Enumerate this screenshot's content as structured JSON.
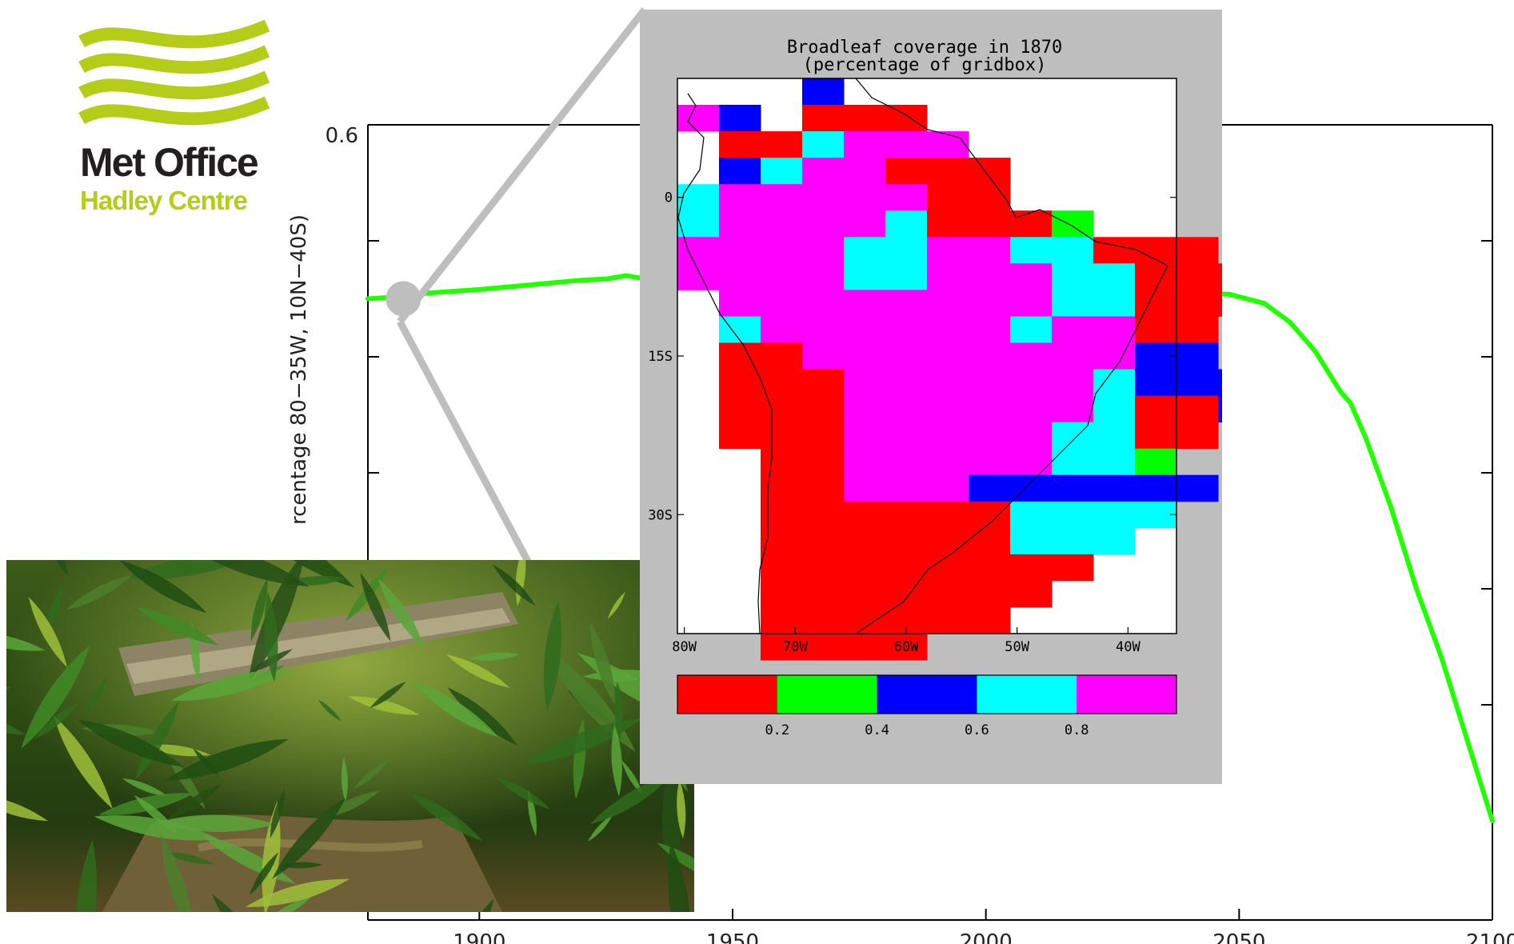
{
  "logo": {
    "line1": "Met Office",
    "line2": "Hadley Centre",
    "brand_color": "#b5cc18",
    "text_color": "#231f20"
  },
  "chart_data": [
    {
      "type": "line",
      "title": "",
      "xlabel": "",
      "ylabel": "rcentage 80−35W, 10N−40S)",
      "x_ticks": [
        "1900",
        "1950",
        "2000",
        "2050",
        "2100"
      ],
      "y_ticks": [
        "0.6"
      ],
      "xlim": [
        1878,
        2100
      ],
      "ylim": [
        0,
        0.6
      ],
      "series": [
        {
          "color": "#22ff00",
          "x": [
            1878,
            1885,
            1890,
            1900,
            1910,
            1920,
            1925,
            1929,
            1933,
            1937,
            2048,
            2055,
            2060,
            2065,
            2070,
            2072,
            2075,
            2080,
            2085,
            2090,
            2095,
            2100
          ],
          "y": [
            0.45,
            0.452,
            0.455,
            0.458,
            0.462,
            0.466,
            0.467,
            0.47,
            0.467,
            0.464,
            0.454,
            0.446,
            0.43,
            0.405,
            0.37,
            0.36,
            0.33,
            0.27,
            0.2,
            0.14,
            0.07,
            0.0
          ]
        }
      ],
      "highlight_point": {
        "x": 1885,
        "y": 0.45
      }
    },
    {
      "type": "heatmap",
      "title": "Broadleaf coverage in 1870",
      "subtitle": "(percentage of gridbox)",
      "x_ticks": [
        "80W",
        "70W",
        "60W",
        "50W",
        "40W"
      ],
      "y_ticks": [
        "0",
        "15S",
        "30S"
      ],
      "lon_range": [
        -80.625,
        -35.625
      ],
      "lat_range": [
        -41.25,
        11.25
      ],
      "cell_size_deg": {
        "lon": 3.75,
        "lat": 2.5
      },
      "colorbar": {
        "colors": [
          "#ff0000",
          "#00ff00",
          "#0000ff",
          "#00ffff",
          "#ff00ff"
        ],
        "labels": [
          "0.2",
          "0.4",
          "0.6",
          "0.8"
        ]
      },
      "grid_rows": [
        ".AB....",
        "MB.RRR.",
        ".RRCMMM.",
        ".BCMMRRR",
        "CMMMMMRR",
        "CMMMMCRRRG",
        "MMMMCCMMCCRRR",
        "MMMMCCMMMCCRRR",
        ".MMMMMMMMCCRRR",
        ".CMMMMMMCMMRR",
        ".RRMMMMMMMMBB",
        ".RRRMMMMMMCBBB",
        ".RRRMMMMMMCRRB",
        ".RRRMMMMMCCRR",
        "..RRMMMMMCCG",
        "..RRMMMBBBBBB",
        "..RRRRRRCCCC",
        "..RRRRRRCCC",
        "..RRRRRRRR",
        "..RRRRRRR",
        "..RRRRRR",
        "..RRRR"
      ],
      "grid_row_offsets": [
        1,
        0,
        0,
        0,
        0,
        0,
        0,
        0,
        0,
        0,
        0,
        0,
        0,
        0,
        0,
        0,
        0,
        0,
        0,
        0,
        0,
        0
      ],
      "grid_legend": {
        "R": "0-0.2",
        "G": "0.2-0.4",
        "B": "0.4-0.6",
        "C": "0.6-0.8",
        "M": "0.8-1.0"
      }
    }
  ],
  "photo": {
    "subject": "rainforest-stream"
  }
}
